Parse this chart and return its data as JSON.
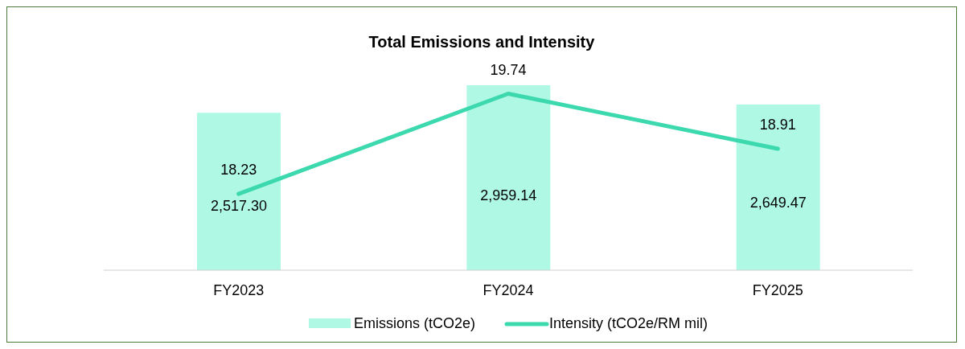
{
  "chart_data": {
    "type": "bar",
    "title": "Total Emissions and Intensity",
    "categories": [
      "FY2023",
      "FY2024",
      "FY2025"
    ],
    "series": [
      {
        "name": "Emissions (tCO2e)",
        "color": "#aef8e4",
        "values": [
          2517.3,
          2959.14,
          2649.47
        ],
        "value_labels": [
          "2,517.30",
          "2,959.14",
          "2,649.47"
        ]
      },
      {
        "name": "Intensity (tCO2e/RM mil)",
        "type": "line",
        "axis": "y2",
        "color": "#3dd9ae",
        "values": [
          18.23,
          19.74,
          18.91
        ],
        "value_labels": [
          "18.23",
          "19.74",
          "18.91"
        ],
        "marker": "none"
      }
    ],
    "tick_labels": "x",
    "grid": false,
    "legend": "bottom"
  }
}
